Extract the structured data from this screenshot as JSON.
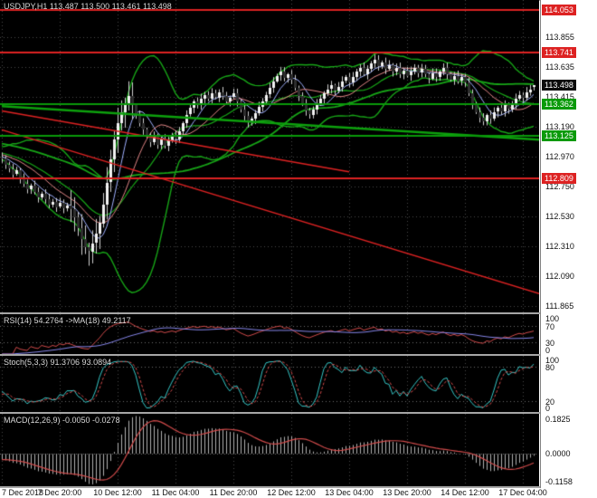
{
  "main": {
    "title": "USDJPY,H1 113.487 113.500 113.461 113.498",
    "current_price": {
      "value": 113.498,
      "label": "113.498",
      "bg": "#0b0b0b"
    }
  },
  "chart_data": {
    "type": "candlestick",
    "symbol": "USDJPY",
    "timeframe": "H1",
    "title": "USDJPY,H1 113.487 113.500 113.461 113.498",
    "x_labels": [
      "7 Dec 2018",
      "7 Dec 20:00",
      "10 Dec 12:00",
      "11 Dec 04:00",
      "11 Dec 20:00",
      "12 Dec 12:00",
      "13 Dec 04:00",
      "13 Dec 20:00",
      "14 Dec 12:00",
      "17 Dec 04:00"
    ],
    "bars_per_label": 16,
    "price_range": [
      111.82,
      114.13
    ],
    "price_axis_ticks": [
      113.855,
      113.635,
      113.415,
      113.19,
      112.97,
      112.75,
      112.53,
      112.31,
      112.09,
      111.865
    ],
    "closes": [
      112.96,
      112.91,
      112.88,
      112.84,
      112.87,
      112.81,
      112.77,
      112.73,
      112.76,
      112.71,
      112.67,
      112.7,
      112.66,
      112.62,
      112.64,
      112.6,
      112.63,
      112.59,
      112.61,
      112.58,
      112.52,
      112.44,
      112.36,
      112.3,
      112.27,
      112.33,
      112.4,
      112.48,
      112.62,
      112.78,
      112.95,
      113.1,
      113.22,
      113.3,
      113.36,
      113.42,
      113.35,
      113.28,
      113.22,
      113.17,
      113.12,
      113.08,
      113.12,
      113.06,
      113.1,
      113.05,
      113.09,
      113.13,
      113.1,
      113.16,
      113.22,
      113.28,
      113.33,
      113.38,
      113.35,
      113.4,
      113.43,
      113.4,
      113.44,
      113.41,
      113.45,
      113.42,
      113.38,
      113.41,
      113.44,
      113.38,
      113.32,
      113.27,
      113.22,
      113.25,
      113.29,
      113.34,
      113.38,
      113.43,
      113.48,
      113.53,
      113.57,
      113.6,
      113.55,
      113.58,
      113.54,
      113.48,
      113.42,
      113.36,
      113.31,
      113.28,
      113.32,
      113.36,
      113.4,
      113.44,
      113.47,
      113.5,
      113.46,
      113.49,
      113.53,
      113.56,
      113.52,
      113.56,
      113.6,
      113.63,
      113.58,
      113.62,
      113.66,
      113.69,
      113.64,
      113.67,
      113.62,
      113.65,
      113.6,
      113.63,
      113.58,
      113.61,
      113.57,
      113.6,
      113.63,
      113.59,
      113.62,
      113.58,
      113.55,
      113.59,
      113.56,
      113.6,
      113.63,
      113.58,
      113.54,
      113.57,
      113.53,
      113.56,
      113.52,
      113.44,
      113.36,
      113.3,
      113.26,
      113.23,
      113.28,
      113.25,
      113.3,
      113.33,
      113.3,
      113.35,
      113.32,
      113.36,
      113.4,
      113.43,
      113.41,
      113.45,
      113.47,
      113.498
    ],
    "last_bar": {
      "open": 113.487,
      "high": 113.5,
      "low": 113.461,
      "close": 113.498
    },
    "level_lines": [
      {
        "value": 114.053,
        "label": "114.053",
        "color": "#dd2222"
      },
      {
        "value": 113.741,
        "label": "113.741",
        "color": "#dd2222"
      },
      {
        "value": 113.362,
        "label": "113.362",
        "color": "#0a9a0a"
      },
      {
        "value": 113.125,
        "label": "113.125",
        "color": "#0a9a0a"
      },
      {
        "value": 112.809,
        "label": "112.809",
        "color": "#dd2222"
      }
    ],
    "trend_lines": [
      {
        "from": [
          0,
          113.17
        ],
        "to": [
          152,
          111.93
        ],
        "color": "#dd2222",
        "width": 1.5
      },
      {
        "from": [
          0,
          113.31
        ],
        "to": [
          96,
          112.86
        ],
        "color": "#dd2222",
        "width": 1.5
      },
      {
        "from": [
          0,
          113.345
        ],
        "to": [
          150,
          113.095
        ],
        "color": "#0da10d",
        "width": 2.5
      }
    ],
    "overlays": {
      "bollinger": {
        "period": 20,
        "deviation": 2,
        "color": "#17a517"
      },
      "sma_slow": {
        "period": 55,
        "color": "#17a517"
      },
      "sma_fast": {
        "period": 7,
        "color": "#9fb0ff"
      },
      "sma_mid": {
        "period": 14,
        "color": "#e08585"
      }
    },
    "indicators": {
      "rsi": {
        "label": "RSI(14) 54.2764 ->MA(18) 49.2117",
        "period": 14,
        "ma_period": 18,
        "levels": [
          100,
          70,
          30,
          0
        ],
        "range": [
          0,
          100
        ],
        "line_color": "#cf4a4a",
        "ma_color": "#8585e8"
      },
      "stoch": {
        "label": "Stoch(5,3,3) 91.3706 93.0894",
        "k": 5,
        "d": 3,
        "slowing": 3,
        "levels": [
          100,
          80,
          20,
          0
        ],
        "range": [
          0,
          100
        ],
        "k_color": "#35c7c7",
        "d_color": "#cf4a4a"
      },
      "macd": {
        "label": "MACD(12,26,9) -0.0050 -0.0278",
        "fast": 12,
        "slow": 26,
        "signal": 9,
        "axis_labels": [
          "0.1825",
          "0.0000",
          "-0.1158"
        ],
        "hist_color": "#b0b0b0",
        "signal_color": "#cf4a4a"
      }
    }
  },
  "time_axis": {
    "labels": [
      "7 Dec 2018",
      "7 Dec 20:00",
      "10 Dec 12:00",
      "11 Dec 04:00",
      "11 Dec 20:00",
      "12 Dec 12:00",
      "13 Dec 04:00",
      "13 Dec 20:00",
      "14 Dec 12:00",
      "17 Dec 04:00"
    ]
  }
}
